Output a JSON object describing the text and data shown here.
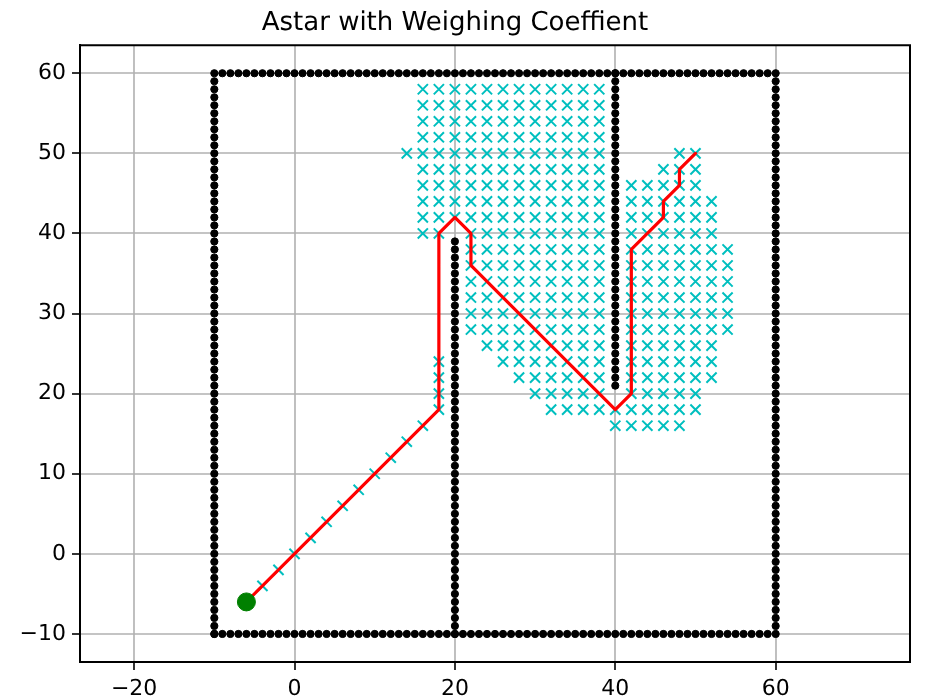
{
  "chart_data": {
    "type": "scatter",
    "title": "Astar with Weighing Coeffient",
    "xlim": [
      -26.75,
      76.75
    ],
    "ylim": [
      -13.5,
      63.5
    ],
    "xticks": [
      -20,
      0,
      20,
      40,
      60
    ],
    "yticks": [
      -10,
      0,
      10,
      20,
      30,
      40,
      50,
      60
    ],
    "grid": true,
    "legend": false,
    "series": [
      {
        "type": "scatter",
        "color": "#000000",
        "marker": "circle",
        "x": [
          -10,
          -9,
          -8,
          -7,
          -6,
          -5,
          -4,
          -3,
          -2,
          -1,
          0,
          1,
          2,
          3,
          4,
          5,
          6,
          7,
          8,
          9,
          10,
          11,
          12,
          13,
          14,
          15,
          16,
          17,
          18,
          19,
          20,
          21,
          22,
          23,
          24,
          25,
          26,
          27,
          28,
          29,
          30,
          31,
          32,
          33,
          34,
          35,
          36,
          37,
          38,
          39,
          40,
          41,
          42,
          43,
          44,
          45,
          46,
          47,
          48,
          49,
          50,
          51,
          52,
          53,
          54,
          55,
          56,
          57,
          58,
          59
        ],
        "values": [
          -10,
          -10,
          -10,
          -10,
          -10,
          -10,
          -10,
          -10,
          -10,
          -10,
          -10,
          -10,
          -10,
          -10,
          -10,
          -10,
          -10,
          -10,
          -10,
          -10,
          -10,
          -10,
          -10,
          -10,
          -10,
          -10,
          -10,
          -10,
          -10,
          -10,
          -10,
          -10,
          -10,
          -10,
          -10,
          -10,
          -10,
          -10,
          -10,
          -10,
          -10,
          -10,
          -10,
          -10,
          -10,
          -10,
          -10,
          -10,
          -10,
          -10,
          -10,
          -10,
          -10,
          -10,
          -10,
          -10,
          -10,
          -10,
          -10,
          -10,
          -10,
          -10,
          -10,
          -10,
          -10,
          -10,
          -10,
          -10,
          -10,
          -10
        ]
      },
      {
        "type": "scatter",
        "color": "#000000",
        "marker": "circle",
        "x": [
          60,
          60,
          60,
          60,
          60,
          60,
          60,
          60,
          60,
          60,
          60,
          60,
          60,
          60,
          60,
          60,
          60,
          60,
          60,
          60,
          60,
          60,
          60,
          60,
          60,
          60,
          60,
          60,
          60,
          60,
          60,
          60,
          60,
          60,
          60,
          60,
          60,
          60,
          60,
          60,
          60,
          60,
          60,
          60,
          60,
          60,
          60,
          60,
          60,
          60,
          60,
          60,
          60,
          60,
          60,
          60,
          60,
          60,
          60,
          60,
          60,
          60,
          60,
          60,
          60,
          60,
          60,
          60,
          60,
          60,
          60
        ],
        "values": [
          -10,
          -9,
          -8,
          -7,
          -6,
          -5,
          -4,
          -3,
          -2,
          -1,
          0,
          1,
          2,
          3,
          4,
          5,
          6,
          7,
          8,
          9,
          10,
          11,
          12,
          13,
          14,
          15,
          16,
          17,
          18,
          19,
          20,
          21,
          22,
          23,
          24,
          25,
          26,
          27,
          28,
          29,
          30,
          31,
          32,
          33,
          34,
          35,
          36,
          37,
          38,
          39,
          40,
          41,
          42,
          43,
          44,
          45,
          46,
          47,
          48,
          49,
          50,
          51,
          52,
          53,
          54,
          55,
          56,
          57,
          58,
          59,
          60
        ]
      },
      {
        "type": "scatter",
        "color": "#000000",
        "marker": "circle",
        "x": [
          -10,
          -9,
          -8,
          -7,
          -6,
          -5,
          -4,
          -3,
          -2,
          -1,
          0,
          1,
          2,
          3,
          4,
          5,
          6,
          7,
          8,
          9,
          10,
          11,
          12,
          13,
          14,
          15,
          16,
          17,
          18,
          19,
          20,
          21,
          22,
          23,
          24,
          25,
          26,
          27,
          28,
          29,
          30,
          31,
          32,
          33,
          34,
          35,
          36,
          37,
          38,
          39,
          40,
          41,
          42,
          43,
          44,
          45,
          46,
          47,
          48,
          49,
          50,
          51,
          52,
          53,
          54,
          55,
          56,
          57,
          58,
          59
        ],
        "values": [
          60,
          60,
          60,
          60,
          60,
          60,
          60,
          60,
          60,
          60,
          60,
          60,
          60,
          60,
          60,
          60,
          60,
          60,
          60,
          60,
          60,
          60,
          60,
          60,
          60,
          60,
          60,
          60,
          60,
          60,
          60,
          60,
          60,
          60,
          60,
          60,
          60,
          60,
          60,
          60,
          60,
          60,
          60,
          60,
          60,
          60,
          60,
          60,
          60,
          60,
          60,
          60,
          60,
          60,
          60,
          60,
          60,
          60,
          60,
          60,
          60,
          60,
          60,
          60,
          60,
          60,
          60,
          60,
          60,
          60
        ]
      },
      {
        "type": "scatter",
        "color": "#000000",
        "marker": "circle",
        "x": [
          -10,
          -10,
          -10,
          -10,
          -10,
          -10,
          -10,
          -10,
          -10,
          -10,
          -10,
          -10,
          -10,
          -10,
          -10,
          -10,
          -10,
          -10,
          -10,
          -10,
          -10,
          -10,
          -10,
          -10,
          -10,
          -10,
          -10,
          -10,
          -10,
          -10,
          -10,
          -10,
          -10,
          -10,
          -10,
          -10,
          -10,
          -10,
          -10,
          -10,
          -10,
          -10,
          -10,
          -10,
          -10,
          -10,
          -10,
          -10,
          -10,
          -10,
          -10,
          -10,
          -10,
          -10,
          -10,
          -10,
          -10,
          -10,
          -10,
          -10,
          -10,
          -10,
          -10,
          -10,
          -10,
          -10,
          -10,
          -10,
          -10,
          -10
        ],
        "values": [
          -10,
          -9,
          -8,
          -7,
          -6,
          -5,
          -4,
          -3,
          -2,
          -1,
          0,
          1,
          2,
          3,
          4,
          5,
          6,
          7,
          8,
          9,
          10,
          11,
          12,
          13,
          14,
          15,
          16,
          17,
          18,
          19,
          20,
          21,
          22,
          23,
          24,
          25,
          26,
          27,
          28,
          29,
          30,
          31,
          32,
          33,
          34,
          35,
          36,
          37,
          38,
          39,
          40,
          41,
          42,
          43,
          44,
          45,
          46,
          47,
          48,
          49,
          50,
          51,
          52,
          53,
          54,
          55,
          56,
          57,
          58,
          59
        ]
      },
      {
        "type": "scatter",
        "color": "#000000",
        "marker": "circle",
        "x": [
          20,
          20,
          20,
          20,
          20,
          20,
          20,
          20,
          20,
          20,
          20,
          20,
          20,
          20,
          20,
          20,
          20,
          20,
          20,
          20,
          20,
          20,
          20,
          20,
          20,
          20,
          20,
          20,
          20,
          20,
          20,
          20,
          20,
          20,
          20,
          20,
          20,
          20,
          20,
          20,
          20,
          20,
          20,
          20,
          20,
          20,
          20,
          20,
          20,
          20
        ],
        "values": [
          -10,
          -9,
          -8,
          -7,
          -6,
          -5,
          -4,
          -3,
          -2,
          -1,
          0,
          1,
          2,
          3,
          4,
          5,
          6,
          7,
          8,
          9,
          10,
          11,
          12,
          13,
          14,
          15,
          16,
          17,
          18,
          19,
          20,
          21,
          22,
          23,
          24,
          25,
          26,
          27,
          28,
          29,
          30,
          31,
          32,
          33,
          34,
          35,
          36,
          37,
          38,
          39
        ]
      },
      {
        "type": "scatter",
        "color": "#000000",
        "marker": "circle",
        "x": [
          40,
          40,
          40,
          40,
          40,
          40,
          40,
          40,
          40,
          40,
          40,
          40,
          40,
          40,
          40,
          40,
          40,
          40,
          40,
          40,
          40,
          40,
          40,
          40,
          40,
          40,
          40,
          40,
          40,
          40,
          40,
          40,
          40,
          40,
          40,
          40,
          40,
          40,
          40,
          40
        ],
        "values": [
          21,
          22,
          23,
          24,
          25,
          26,
          27,
          28,
          29,
          30,
          31,
          32,
          33,
          34,
          35,
          36,
          37,
          38,
          39,
          40,
          41,
          42,
          43,
          44,
          45,
          46,
          47,
          48,
          49,
          50,
          51,
          52,
          53,
          54,
          55,
          56,
          57,
          58,
          59,
          60
        ]
      },
      {
        "type": "scatter",
        "color": "#00bfbf",
        "marker": "cross",
        "x": [
          -4,
          -2,
          0,
          2,
          4,
          6,
          8,
          10,
          12,
          14,
          16,
          14,
          16,
          16,
          16,
          16,
          16,
          16,
          16,
          16,
          16,
          16,
          18,
          18,
          18,
          18,
          18,
          18,
          18,
          18,
          18,
          18,
          18,
          18,
          18,
          18,
          20,
          20,
          20,
          20,
          20,
          20,
          20,
          20,
          20,
          22,
          22,
          22,
          22,
          22,
          22,
          22,
          22,
          22,
          22,
          22,
          22,
          22,
          22,
          22,
          22,
          24,
          24,
          24,
          24,
          24,
          24,
          24,
          24,
          24,
          24,
          24,
          24,
          24,
          24,
          24,
          24,
          24,
          26,
          26,
          26,
          26,
          26,
          26,
          26,
          26,
          26,
          26,
          26,
          26,
          26,
          26,
          26,
          26,
          26,
          26,
          28,
          28,
          28,
          28,
          28,
          28,
          28,
          28,
          28,
          28,
          28,
          28,
          28,
          28,
          28,
          28,
          28,
          28,
          28,
          30,
          30,
          30,
          30,
          30,
          30,
          30,
          30,
          30,
          30,
          30,
          30,
          30,
          30,
          30,
          30,
          30,
          30,
          30,
          30,
          32,
          32,
          32,
          32,
          32,
          32,
          32,
          32,
          32,
          32,
          32,
          32,
          32,
          32,
          32,
          32,
          32,
          32,
          32,
          32,
          32,
          34,
          34,
          34,
          34,
          34,
          34,
          34,
          34,
          34,
          34,
          34,
          34,
          34,
          34,
          34,
          34,
          34,
          34,
          34,
          34,
          34,
          36,
          36,
          36,
          36,
          36,
          36,
          36,
          36,
          36,
          36,
          36,
          36,
          36,
          36,
          36,
          36,
          36,
          36,
          36,
          36,
          36,
          38,
          38,
          38,
          38,
          38,
          38,
          38,
          38,
          38,
          38,
          38,
          38,
          38,
          38,
          38,
          38,
          38,
          38,
          38,
          38,
          38,
          40,
          40,
          42,
          42,
          42,
          42,
          42,
          42,
          42,
          42,
          42,
          42,
          42,
          42,
          42,
          42,
          42,
          42,
          44,
          44,
          44,
          44,
          44,
          44,
          44,
          44,
          44,
          44,
          44,
          44,
          44,
          44,
          44,
          44,
          46,
          46,
          46,
          46,
          46,
          46,
          46,
          46,
          46,
          46,
          46,
          46,
          46,
          46,
          46,
          46,
          46,
          48,
          48,
          48,
          48,
          48,
          48,
          48,
          48,
          48,
          48,
          48,
          48,
          48,
          48,
          48,
          48,
          48,
          48,
          50,
          50,
          50,
          50,
          50,
          50,
          50,
          50,
          50,
          50,
          50,
          50,
          50,
          50,
          50,
          50,
          50,
          52,
          52,
          52,
          52,
          52,
          52,
          52,
          52,
          52,
          52,
          52,
          52,
          54,
          54,
          54,
          54,
          54,
          54
        ],
        "values": [
          -4,
          -2,
          0,
          2,
          4,
          6,
          8,
          10,
          12,
          14,
          16,
          50,
          40,
          42,
          44,
          46,
          48,
          50,
          52,
          54,
          56,
          58,
          18,
          20,
          22,
          24,
          40,
          42,
          44,
          46,
          48,
          50,
          52,
          54,
          56,
          58,
          42,
          44,
          46,
          48,
          50,
          52,
          54,
          56,
          58,
          28,
          30,
          32,
          34,
          36,
          38,
          40,
          42,
          44,
          46,
          48,
          50,
          52,
          54,
          56,
          58,
          26,
          28,
          30,
          32,
          34,
          36,
          38,
          40,
          42,
          44,
          46,
          48,
          50,
          52,
          54,
          56,
          58,
          24,
          26,
          28,
          30,
          32,
          34,
          36,
          38,
          40,
          42,
          44,
          46,
          48,
          50,
          52,
          54,
          56,
          58,
          22,
          24,
          26,
          28,
          30,
          32,
          34,
          36,
          38,
          40,
          42,
          44,
          46,
          48,
          50,
          52,
          54,
          56,
          58,
          20,
          22,
          24,
          26,
          28,
          30,
          32,
          34,
          36,
          38,
          40,
          42,
          44,
          46,
          48,
          50,
          52,
          54,
          56,
          58,
          18,
          20,
          22,
          24,
          26,
          28,
          30,
          32,
          34,
          36,
          38,
          40,
          42,
          44,
          46,
          48,
          50,
          52,
          54,
          56,
          58,
          18,
          20,
          22,
          24,
          26,
          28,
          30,
          32,
          34,
          36,
          38,
          40,
          42,
          44,
          46,
          48,
          50,
          52,
          54,
          56,
          58,
          18,
          20,
          22,
          24,
          26,
          28,
          30,
          32,
          34,
          36,
          38,
          40,
          42,
          44,
          46,
          48,
          50,
          52,
          54,
          56,
          58,
          18,
          20,
          22,
          24,
          26,
          28,
          30,
          32,
          34,
          36,
          38,
          40,
          42,
          44,
          46,
          48,
          50,
          52,
          54,
          56,
          58,
          16,
          18,
          16,
          18,
          20,
          22,
          24,
          26,
          28,
          30,
          32,
          34,
          36,
          38,
          40,
          42,
          44,
          46,
          16,
          18,
          20,
          22,
          24,
          26,
          28,
          30,
          32,
          34,
          36,
          38,
          40,
          42,
          44,
          46,
          16,
          18,
          20,
          22,
          24,
          26,
          28,
          30,
          32,
          34,
          36,
          38,
          40,
          42,
          44,
          46,
          48,
          16,
          18,
          20,
          22,
          24,
          26,
          28,
          30,
          32,
          34,
          36,
          38,
          40,
          42,
          44,
          46,
          48,
          50,
          18,
          20,
          22,
          24,
          26,
          28,
          30,
          32,
          34,
          36,
          38,
          40,
          42,
          44,
          46,
          48,
          50,
          22,
          24,
          26,
          28,
          30,
          32,
          34,
          36,
          38,
          40,
          42,
          44,
          28,
          30,
          32,
          34,
          36,
          38
        ]
      },
      {
        "type": "line",
        "color": "#ff0000",
        "marker": "none",
        "line_style": "solid",
        "x": [
          -6,
          18,
          18,
          20,
          22,
          22,
          40,
          42,
          42,
          46,
          46,
          48,
          48,
          50
        ],
        "values": [
          -6,
          18,
          40,
          42,
          40,
          36,
          18,
          20,
          38,
          42,
          44,
          46,
          48,
          50
        ]
      },
      {
        "type": "scatter",
        "color": "#008000",
        "marker": "circle",
        "x": [
          -6
        ],
        "values": [
          -6
        ]
      }
    ]
  }
}
